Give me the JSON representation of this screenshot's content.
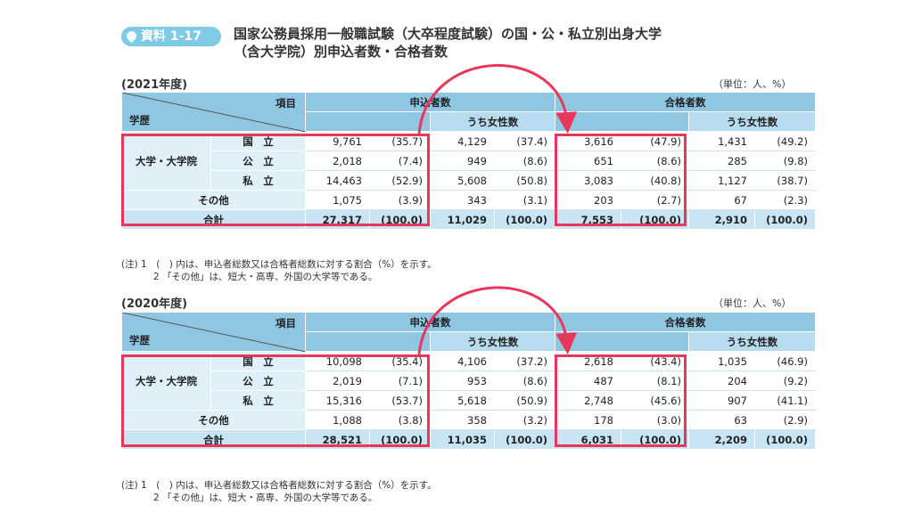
{
  "header": {
    "tag": "資料 1-17",
    "title_line1": "国家公務員採用一般職試験（大卒程度試験）の国・公・私立別出身大学",
    "title_line2": "（含大学院）別申込者数・合格者数"
  },
  "col_labels": {
    "item": "項目",
    "gakureki": "学歴",
    "applicants": "申込者数",
    "passers": "合格者数",
    "women": "うち女性数"
  },
  "row_labels": {
    "group": "大学・大学院",
    "national": "国　立",
    "public": "公　立",
    "private": "私　立",
    "other": "その他",
    "total": "合計"
  },
  "unit": "（単位：人、%）",
  "notes": {
    "n1": "(注) 1　(　) 内は、申込者総数又は合格者総数に対する割合（%）を示す。",
    "n2": "2 「その他」は、短大・高専、外国の大学等である。"
  },
  "tables": [
    {
      "year": "(2021年度)",
      "rows": [
        [
          "9,761",
          "(35.7)",
          "4,129",
          "(37.4)",
          "3,616",
          "(47.9)",
          "1,431",
          "(49.2)"
        ],
        [
          "2,018",
          "(7.4)",
          "949",
          "(8.6)",
          "651",
          "(8.6)",
          "285",
          "(9.8)"
        ],
        [
          "14,463",
          "(52.9)",
          "5,608",
          "(50.8)",
          "3,083",
          "(40.8)",
          "1,127",
          "(38.7)"
        ],
        [
          "1,075",
          "(3.9)",
          "343",
          "(3.1)",
          "203",
          "(2.7)",
          "67",
          "(2.3)"
        ],
        [
          "27,317",
          "(100.0)",
          "11,029",
          "(100.0)",
          "7,553",
          "(100.0)",
          "2,910",
          "(100.0)"
        ]
      ]
    },
    {
      "year": "(2020年度)",
      "rows": [
        [
          "10,098",
          "(35.4)",
          "4,106",
          "(37.2)",
          "2,618",
          "(43.4)",
          "1,035",
          "(46.9)"
        ],
        [
          "2,019",
          "(7.1)",
          "953",
          "(8.6)",
          "487",
          "(8.1)",
          "204",
          "(9.2)"
        ],
        [
          "15,316",
          "(53.7)",
          "5,618",
          "(50.9)",
          "2,748",
          "(45.6)",
          "907",
          "(41.1)"
        ],
        [
          "1,088",
          "(3.8)",
          "358",
          "(3.2)",
          "178",
          "(3.0)",
          "63",
          "(2.9)"
        ],
        [
          "28,521",
          "(100.0)",
          "11,035",
          "(100.0)",
          "6,031",
          "(100.0)",
          "2,209",
          "(100.0)"
        ]
      ]
    }
  ],
  "colors": {
    "accent": "#e8375a",
    "header": "#8fc7e3",
    "tag": "#7fcbe6"
  }
}
